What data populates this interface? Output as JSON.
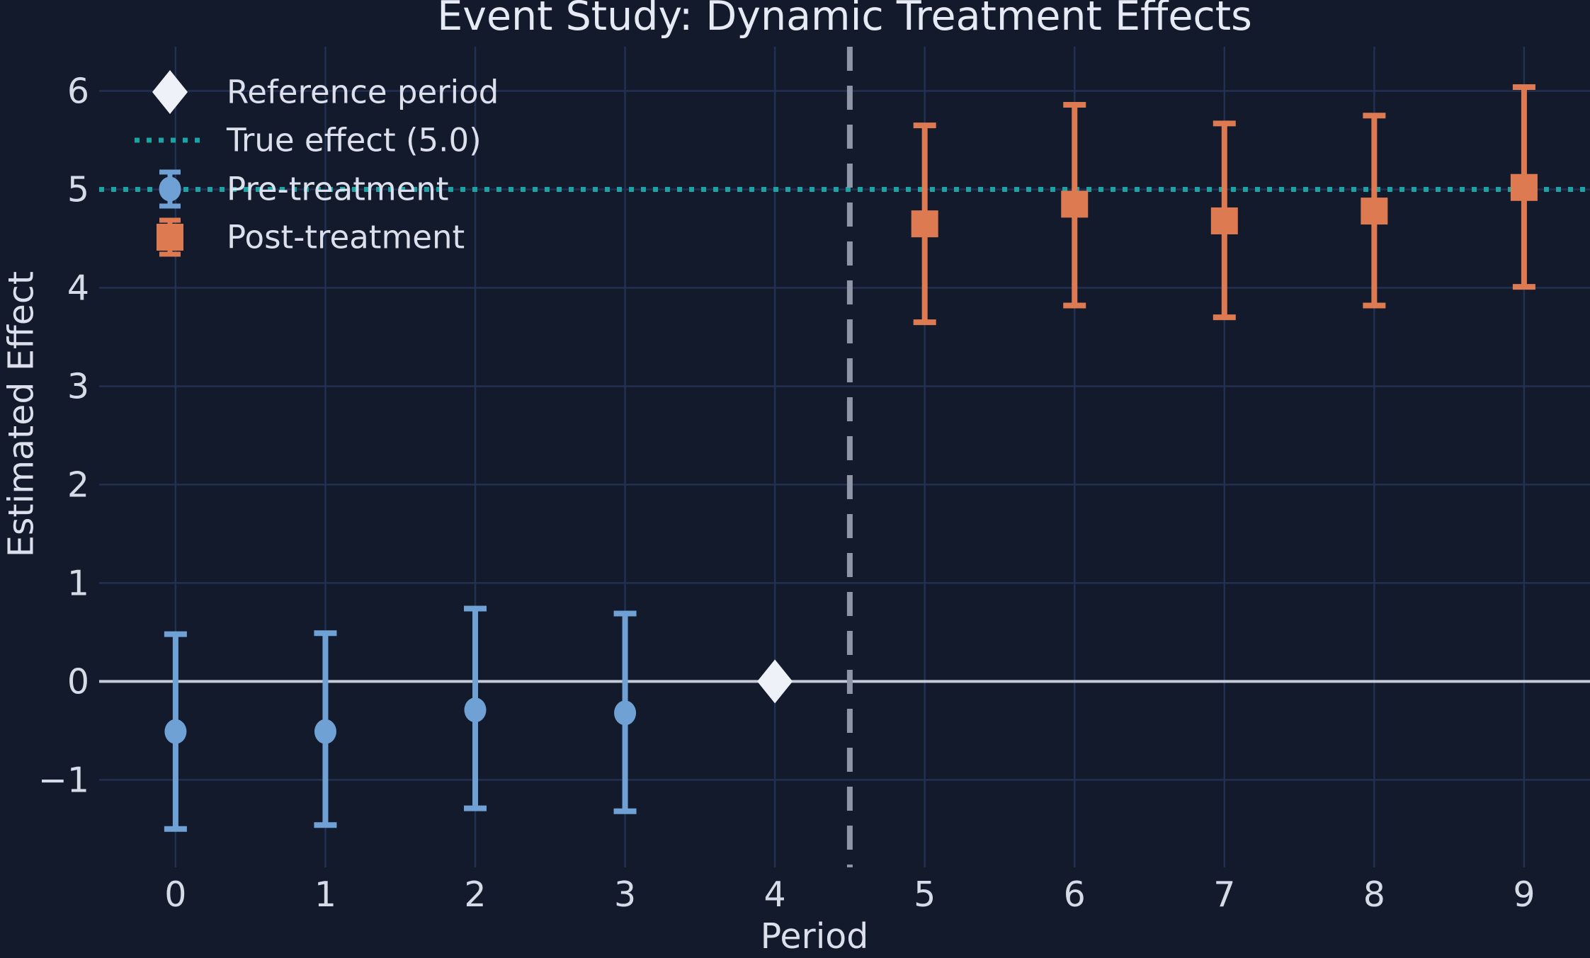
{
  "colors": {
    "background": "#121A2B",
    "grid_line": "#233052",
    "zero_line": "#C6CBD8",
    "true_effect_line": "#1AA4A4",
    "treatment_boundary_line": "#8E95A6",
    "pre_treatment": "#6FA1D4",
    "post_treatment": "#DD7A52",
    "reference_marker": "#EFF1F8",
    "title_text": "#E6EAF4",
    "tick_text": "#D6DBE8",
    "axis_label_text": "#DCE0EC",
    "legend_text": "#DCE0EC"
  },
  "chart_data": {
    "type": "scatter",
    "title": "Event Study: Dynamic Treatment Effects",
    "xlabel": "Period",
    "ylabel": "Estimated Effect",
    "xlim": [
      -0.51,
      9.44
    ],
    "ylim": [
      -1.89,
      6.45
    ],
    "x_ticks": [
      0,
      1,
      2,
      3,
      4,
      5,
      6,
      7,
      8,
      9
    ],
    "x_tick_labels": [
      "0",
      "1",
      "2",
      "3",
      "4",
      "5",
      "6",
      "7",
      "8",
      "9"
    ],
    "y_ticks": [
      -1,
      0,
      1,
      2,
      3,
      4,
      5,
      6
    ],
    "y_tick_labels": [
      "−1",
      "0",
      "1",
      "2",
      "3",
      "4",
      "5",
      "6"
    ],
    "grid": true,
    "zero_line_y": 0,
    "true_effect_value": 5.0,
    "treatment_boundary_x": 4.5,
    "legend": {
      "position": "upper-left",
      "entries": [
        {
          "label": "Reference period",
          "marker": "diamond",
          "color": "#EFF1F8"
        },
        {
          "label": "True effect (5.0)",
          "marker": "dotted-line",
          "color": "#1AA4A4"
        },
        {
          "label": "Pre-treatment",
          "marker": "errorbar-circle",
          "color": "#6FA1D4"
        },
        {
          "label": "Post-treatment",
          "marker": "errorbar-square",
          "color": "#DD7A52"
        }
      ]
    },
    "series": [
      {
        "key": "pre-treatment",
        "name": "Pre-treatment",
        "marker": "circle",
        "color": "#6FA1D4",
        "points": [
          {
            "x": 0,
            "y": -0.51,
            "ci_low": -1.5,
            "ci_high": 0.48
          },
          {
            "x": 1,
            "y": -0.51,
            "ci_low": -1.46,
            "ci_high": 0.49
          },
          {
            "x": 2,
            "y": -0.29,
            "ci_low": -1.29,
            "ci_high": 0.74
          },
          {
            "x": 3,
            "y": -0.32,
            "ci_low": -1.32,
            "ci_high": 0.69
          }
        ]
      },
      {
        "key": "post-treatment",
        "name": "Post-treatment",
        "marker": "square",
        "color": "#DD7A52",
        "points": [
          {
            "x": 5,
            "y": 4.65,
            "ci_low": 3.65,
            "ci_high": 5.65
          },
          {
            "x": 6,
            "y": 4.85,
            "ci_low": 3.82,
            "ci_high": 5.86
          },
          {
            "x": 7,
            "y": 4.68,
            "ci_low": 3.7,
            "ci_high": 5.67
          },
          {
            "x": 8,
            "y": 4.78,
            "ci_low": 3.82,
            "ci_high": 5.75
          },
          {
            "x": 9,
            "y": 5.02,
            "ci_low": 4.01,
            "ci_high": 6.04
          }
        ]
      },
      {
        "key": "reference",
        "name": "Reference period",
        "marker": "diamond",
        "color": "#EFF1F8",
        "points": [
          {
            "x": 4,
            "y": 0.0
          }
        ]
      }
    ]
  }
}
